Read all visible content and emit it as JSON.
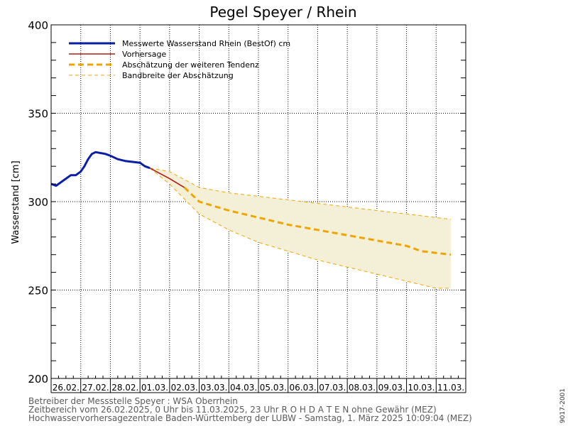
{
  "chart_data": {
    "type": "line",
    "title": "Pegel Speyer / Rhein",
    "ylabel": "Wasserstand [cm]",
    "xlabel": "",
    "ylim": [
      200,
      400
    ],
    "yticks": [
      200,
      250,
      300,
      350,
      400
    ],
    "x_start": "2025-02-26 00:00",
    "x_end": "2025-03-11 23:00",
    "categories": [
      "26.02.",
      "27.02.",
      "28.02.",
      "01.03.",
      "02.03.",
      "03.03.",
      "04.03.",
      "05.03.",
      "06.03.",
      "07.03.",
      "08.03.",
      "09.03.",
      "10.03.",
      "11.03."
    ],
    "grid": true,
    "legend_position": "top-left",
    "series": [
      {
        "name": "Messwerte Wasserstand Rhein (BestOf)  cm",
        "color": "#0a1ea8",
        "style": "solid-thick",
        "points": [
          [
            "2025-02-26 00:00",
            310
          ],
          [
            "2025-02-26 04:00",
            309
          ],
          [
            "2025-02-26 08:00",
            311
          ],
          [
            "2025-02-26 12:00",
            313
          ],
          [
            "2025-02-26 16:00",
            315
          ],
          [
            "2025-02-26 20:00",
            315
          ],
          [
            "2025-02-27 00:00",
            317
          ],
          [
            "2025-02-27 03:00",
            320
          ],
          [
            "2025-02-27 06:00",
            324
          ],
          [
            "2025-02-27 09:00",
            327
          ],
          [
            "2025-02-27 12:00",
            328
          ],
          [
            "2025-02-27 16:00",
            327.5
          ],
          [
            "2025-02-27 20:00",
            327
          ],
          [
            "2025-02-28 00:00",
            326
          ],
          [
            "2025-02-28 06:00",
            324
          ],
          [
            "2025-02-28 12:00",
            323
          ],
          [
            "2025-02-28 18:00",
            322.5
          ],
          [
            "2025-03-01 00:00",
            322
          ],
          [
            "2025-03-01 04:00",
            320
          ],
          [
            "2025-03-01 08:00",
            319
          ]
        ]
      },
      {
        "name": "Vorhersage",
        "color": "#b01a1a",
        "style": "solid",
        "points": [
          [
            "2025-03-01 08:00",
            319
          ],
          [
            "2025-03-01 16:00",
            316
          ],
          [
            "2025-03-02 00:00",
            313
          ],
          [
            "2025-03-02 12:00",
            308
          ]
        ]
      },
      {
        "name": "Abschätzung der weiteren Tendenz",
        "color": "#f0a400",
        "style": "dashed-thick",
        "points": [
          [
            "2025-03-02 12:00",
            308
          ],
          [
            "2025-03-03 00:00",
            300
          ],
          [
            "2025-03-04 00:00",
            295
          ],
          [
            "2025-03-05 00:00",
            291
          ],
          [
            "2025-03-06 00:00",
            287
          ],
          [
            "2025-03-07 00:00",
            284
          ],
          [
            "2025-03-08 00:00",
            281
          ],
          [
            "2025-03-09 00:00",
            278
          ],
          [
            "2025-03-10 00:00",
            275
          ],
          [
            "2025-03-10 12:00",
            272
          ],
          [
            "2025-03-11 00:00",
            271
          ],
          [
            "2025-03-11 12:00",
            270
          ]
        ]
      },
      {
        "name": "Bandbreite der Abschätzung",
        "color": "#f0a400",
        "fill": "#f4f0d8",
        "style": "dashed-thin",
        "upper": [
          [
            "2025-03-01 08:00",
            319
          ],
          [
            "2025-03-02 00:00",
            317
          ],
          [
            "2025-03-03 00:00",
            308
          ],
          [
            "2025-03-04 00:00",
            305
          ],
          [
            "2025-03-05 00:00",
            303
          ],
          [
            "2025-03-06 00:00",
            301
          ],
          [
            "2025-03-07 00:00",
            299
          ],
          [
            "2025-03-08 00:00",
            297
          ],
          [
            "2025-03-09 00:00",
            295
          ],
          [
            "2025-03-10 00:00",
            293
          ],
          [
            "2025-03-11 00:00",
            291
          ],
          [
            "2025-03-11 12:00",
            290
          ]
        ],
        "lower": [
          [
            "2025-03-01 08:00",
            319
          ],
          [
            "2025-03-02 00:00",
            310
          ],
          [
            "2025-03-03 00:00",
            293
          ],
          [
            "2025-03-04 00:00",
            284
          ],
          [
            "2025-03-05 00:00",
            277
          ],
          [
            "2025-03-06 00:00",
            272
          ],
          [
            "2025-03-07 00:00",
            267
          ],
          [
            "2025-03-08 00:00",
            263
          ],
          [
            "2025-03-09 00:00",
            259
          ],
          [
            "2025-03-10 00:00",
            255
          ],
          [
            "2025-03-11 00:00",
            251
          ],
          [
            "2025-03-11 12:00",
            251
          ]
        ]
      }
    ]
  },
  "footer": {
    "operator": "Betreiber der Messstelle Speyer : WSA Oberrhein",
    "timerange": "Zeitbereich vom 26.02.2025, 0 Uhr bis 11.03.2025, 23 Uhr    R O H D A T E N ohne Gewähr (MEZ)",
    "source": "Hochwasservorhersagezentrale Baden-Württemberg der LUBW - Samstag, 1. März 2025 10:09:04 (MEZ)",
    "code": "9017-2001"
  }
}
